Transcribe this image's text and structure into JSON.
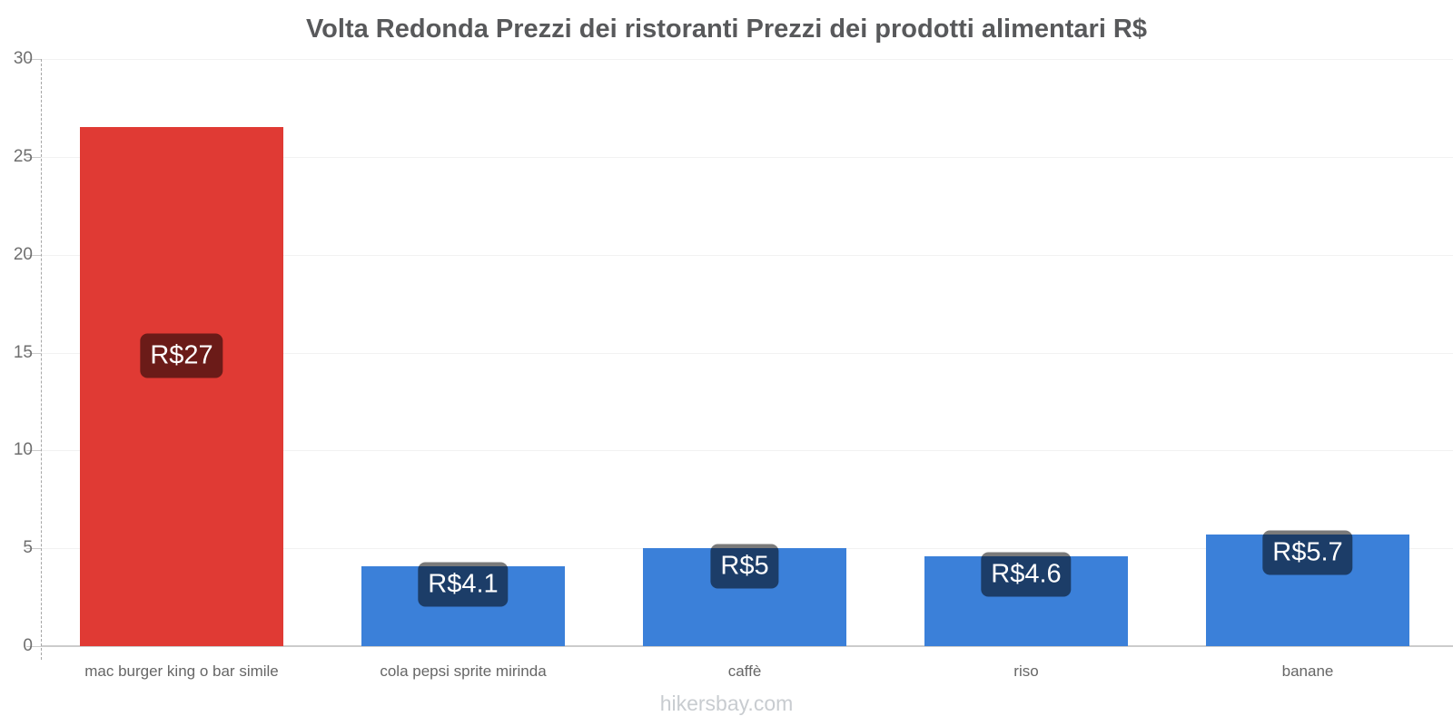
{
  "title": "Volta Redonda Prezzi dei ristoranti Prezzi dei prodotti alimentari R$",
  "footer": "hikersbay.com",
  "colors": {
    "restaurant_bar": "#e03a34",
    "grocery_bar": "#3b80d9",
    "badge_background": "rgba(0,0,0,0.52)",
    "badge_text": "#ffffff",
    "title_text": "#58595b",
    "axis_text": "#6e6e6e",
    "category_text": "#666666",
    "gridline": "#f2f2f2",
    "axis_line": "#cccccc",
    "watermark_text": "#c8ccd0"
  },
  "chart_data": {
    "type": "bar",
    "title": "Volta Redonda Prezzi dei ristoranti Prezzi dei prodotti alimentari R$",
    "xlabel": "",
    "ylabel": "",
    "ylim": [
      0,
      30
    ],
    "yticks": [
      0,
      5,
      10,
      15,
      20,
      25,
      30
    ],
    "grid": true,
    "legend_position": "none",
    "currency": "R$",
    "categories": [
      "mac burger king o bar simile",
      "cola pepsi sprite mirinda",
      "caffè",
      "riso",
      "banane"
    ],
    "values": [
      26.5,
      4.1,
      5.0,
      4.6,
      5.7
    ],
    "value_labels": [
      "R$27",
      "R$4.1",
      "R$5",
      "R$4.6",
      "R$5.7"
    ],
    "bar_colors": [
      "#e03a34",
      "#3b80d9",
      "#3b80d9",
      "#3b80d9",
      "#3b80d9"
    ],
    "watermark": "hikersbay.com"
  }
}
